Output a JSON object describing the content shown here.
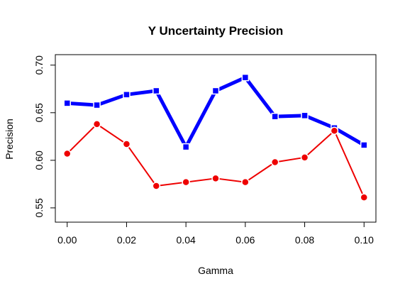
{
  "chart_data": {
    "type": "line",
    "title": "Y Uncertainty Precision",
    "xlabel": "Gamma",
    "ylabel": "Precision",
    "x": [
      0.0,
      0.01,
      0.02,
      0.03,
      0.04,
      0.05,
      0.06,
      0.07,
      0.08,
      0.09,
      0.1
    ],
    "xticks": [
      "0.00",
      "0.02",
      "0.04",
      "0.06",
      "0.08",
      "0.10"
    ],
    "xtick_values": [
      0.0,
      0.02,
      0.04,
      0.06,
      0.08,
      0.1
    ],
    "yticks": [
      "0.55",
      "0.60",
      "0.65",
      "0.70"
    ],
    "ytick_values": [
      0.55,
      0.6,
      0.65,
      0.7
    ],
    "xlim": [
      -0.004,
      0.104
    ],
    "ylim": [
      0.535,
      0.711
    ],
    "grid": false,
    "series": [
      {
        "color": "#0000ff",
        "marker": "square",
        "values": [
          0.66,
          0.658,
          0.669,
          0.673,
          0.614,
          0.673,
          0.687,
          0.646,
          0.647,
          0.634,
          0.616
        ]
      },
      {
        "color": "#ee0000",
        "marker": "circle",
        "values": [
          0.607,
          0.638,
          0.617,
          0.573,
          0.577,
          0.581,
          0.577,
          0.598,
          0.603,
          0.631,
          0.561
        ]
      }
    ]
  }
}
